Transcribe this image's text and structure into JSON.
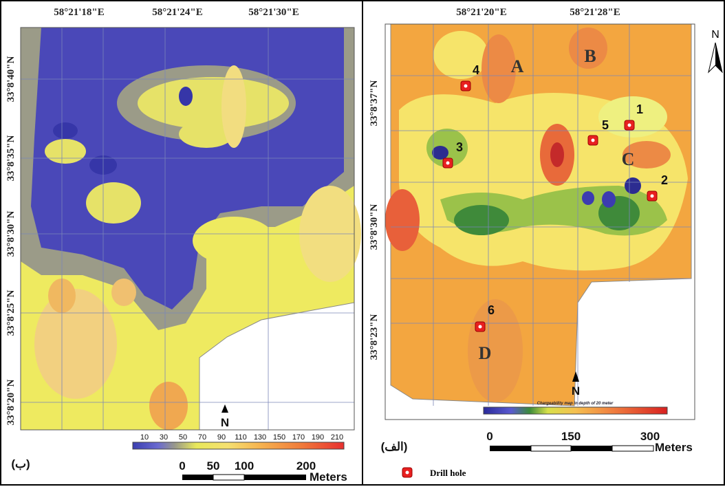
{
  "left_panel": {
    "top_coordinates": [
      "58°21'18\"E",
      "58°21'24\"E",
      "58°21'30\"E"
    ],
    "side_coordinates": [
      "33°8'40\"N",
      "33°8'35\"N",
      "33°8'30\"N",
      "33°8'25\"N",
      "33°8'20\"N"
    ],
    "colorbar_labels": [
      10,
      30,
      50,
      70,
      90,
      110,
      130,
      150,
      170,
      190,
      210
    ],
    "scale_labels": [
      0,
      50,
      100,
      200
    ],
    "scale_unit": "Meters",
    "north": "N",
    "panel_label": "(ب)"
  },
  "right_panel": {
    "top_coordinates": [
      "58°21'20\"E",
      "58°21'28\"E"
    ],
    "side_coordinates": [
      "33°8'37\"N",
      "33°8'30\"N",
      "33°8'23\"N"
    ],
    "zones": [
      "A",
      "B",
      "C",
      "D"
    ],
    "drill_holes": [
      "1",
      "2",
      "3",
      "4",
      "5",
      "6"
    ],
    "colorbar_title": "Chargeability map in depth of 20 meter",
    "scale_labels": [
      0,
      150,
      300
    ],
    "scale_unit": "Meters",
    "north": "N",
    "panel_label": "(الف)",
    "legend": "Drill hole"
  }
}
